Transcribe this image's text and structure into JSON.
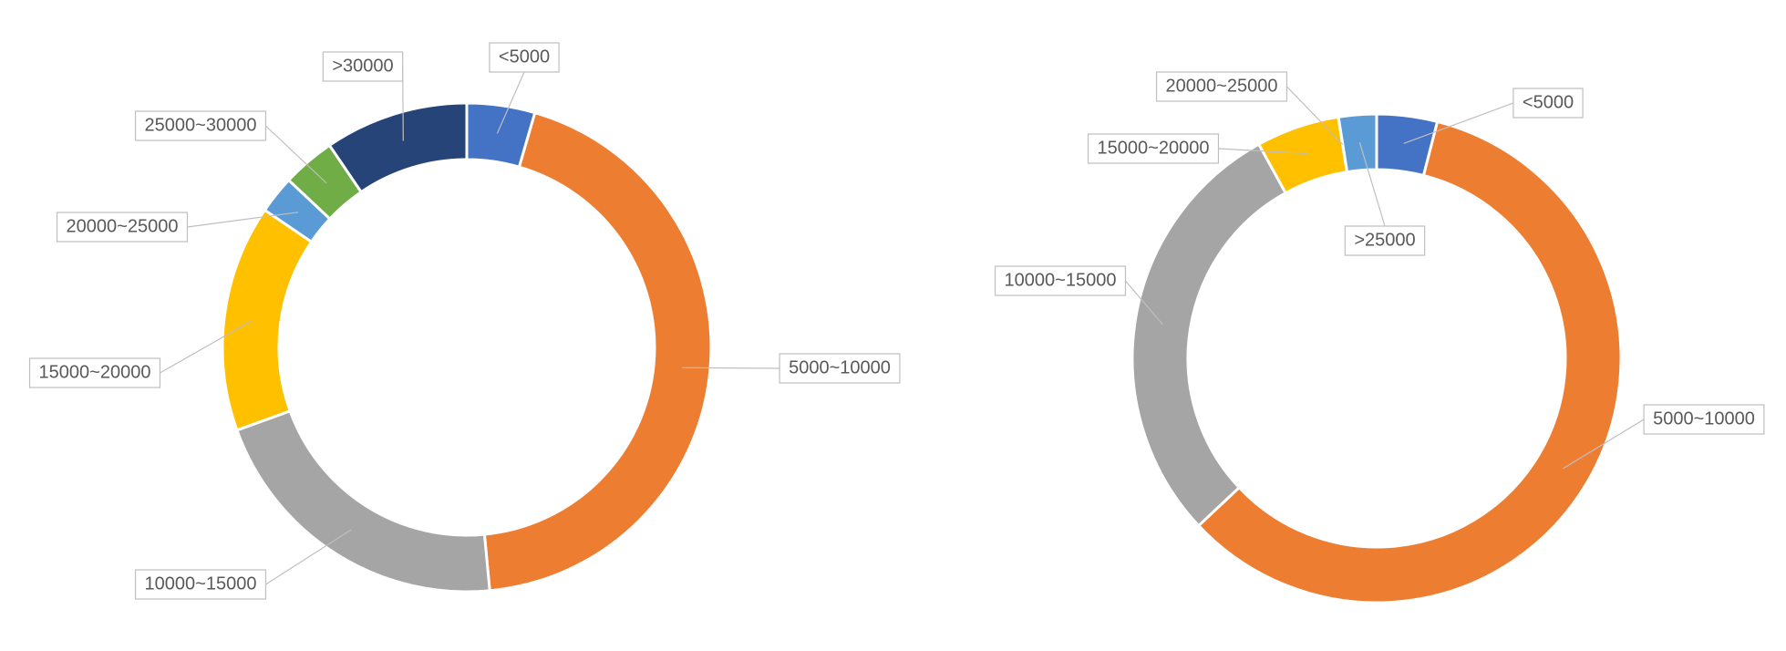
{
  "chart_data": [
    {
      "type": "donut",
      "categories": [
        "<5000",
        "5000~10000",
        "10000~15000",
        "15000~20000",
        "20000~25000",
        "25000~30000",
        ">30000"
      ],
      "values": [
        4.5,
        44,
        21,
        15,
        2.5,
        3.5,
        9.5
      ],
      "colors": [
        "#4472c4",
        "#ed7d31",
        "#a5a5a5",
        "#ffc000",
        "#5b9bd5",
        "#70ad47",
        "#264478"
      ]
    },
    {
      "type": "donut",
      "categories": [
        "<5000",
        "5000~10000",
        "10000~15000",
        "15000~20000",
        "20000~25000",
        ">25000"
      ],
      "values": [
        4,
        59,
        29,
        5.5,
        0.01,
        2.5
      ],
      "colors": [
        "#4472c4",
        "#ed7d31",
        "#a5a5a5",
        "#ffc000",
        "#5b9bd5",
        "#5b9bd5"
      ]
    }
  ]
}
